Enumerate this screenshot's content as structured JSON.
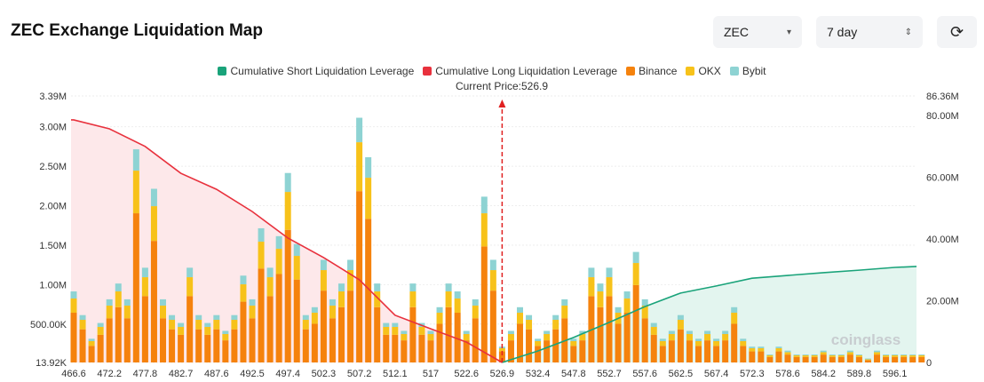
{
  "header": {
    "title": "ZEC Exchange Liquidation Map",
    "coin": "ZEC",
    "range": "7 day",
    "coin_arrow": "▾",
    "range_arrow": "⇕",
    "refresh_icon": "⟳"
  },
  "watermark": "coinglass",
  "chart_data": {
    "type": "bar",
    "title": "",
    "current_price_label": "Current Price:526.9",
    "current_price": 526.9,
    "legend": [
      {
        "name": "Cumulative Short Liquidation Leverage",
        "color": "#1aa37a"
      },
      {
        "name": "Cumulative Long Liquidation Leverage",
        "color": "#e8313d"
      },
      {
        "name": "Binance",
        "color": "#f5820d"
      },
      {
        "name": "OKX",
        "color": "#f7c21a"
      },
      {
        "name": "Bybit",
        "color": "#8ed3d3"
      }
    ],
    "x_tick_labels": [
      "466.6",
      "472.2",
      "477.8",
      "482.7",
      "487.6",
      "492.5",
      "497.4",
      "502.3",
      "507.2",
      "512.1",
      "517",
      "522.6",
      "526.9",
      "532.4",
      "547.8",
      "552.7",
      "557.6",
      "562.5",
      "567.4",
      "572.3",
      "578.6",
      "584.2",
      "589.8",
      "596.1"
    ],
    "y_left": {
      "ticks": [
        "13.92K",
        "500.00K",
        "1.00M",
        "1.50M",
        "2.00M",
        "2.50M",
        "3.00M",
        "3.39M"
      ],
      "tick_values": [
        0.01392,
        0.5,
        1.0,
        1.5,
        2.0,
        2.5,
        3.0,
        3.39
      ],
      "range": [
        0.01392,
        3.39
      ],
      "unit": "M"
    },
    "y_right": {
      "ticks": [
        "0",
        "20.00M",
        "40.00M",
        "60.00M",
        "80.00M",
        "86.36M"
      ],
      "tick_values": [
        0,
        20,
        40,
        60,
        80,
        86.36
      ],
      "range": [
        0,
        86.36
      ],
      "unit": "M"
    },
    "series": [
      {
        "name": "Binance",
        "values": [
          0.63,
          0.42,
          0.21,
          0.35,
          0.56,
          0.7,
          0.56,
          1.89,
          0.84,
          1.54,
          0.56,
          0.42,
          0.35,
          0.84,
          0.42,
          0.35,
          0.42,
          0.28,
          0.42,
          0.77,
          0.56,
          1.19,
          0.84,
          1.12,
          1.68,
          1.05,
          0.42,
          0.49,
          0.91,
          0.56,
          0.7,
          0.91,
          2.17,
          1.82,
          0.7,
          0.35,
          0.35,
          0.28,
          0.7,
          0.35,
          0.28,
          0.49,
          0.7,
          0.63,
          0.28,
          0.56,
          1.47,
          0.91,
          0.14,
          0.28,
          0.49,
          0.42,
          0.21,
          0.28,
          0.42,
          0.56,
          0.21,
          0.28,
          0.84,
          0.7,
          0.84,
          0.49,
          0.63,
          0.98,
          0.56,
          0.35,
          0.21,
          0.28,
          0.42,
          0.28,
          0.21,
          0.28,
          0.21,
          0.28,
          0.49,
          0.21,
          0.14,
          0.14,
          0.07,
          0.14,
          0.1,
          0.07,
          0.07,
          0.07,
          0.1,
          0.07,
          0.07,
          0.1,
          0.07,
          0.03,
          0.1,
          0.07,
          0.07,
          0.07,
          0.07,
          0.07
        ]
      },
      {
        "name": "OKX",
        "values": [
          0.18,
          0.12,
          0.06,
          0.1,
          0.16,
          0.2,
          0.16,
          0.54,
          0.24,
          0.44,
          0.16,
          0.12,
          0.1,
          0.24,
          0.12,
          0.1,
          0.12,
          0.08,
          0.12,
          0.22,
          0.16,
          0.34,
          0.24,
          0.32,
          0.48,
          0.3,
          0.12,
          0.14,
          0.26,
          0.16,
          0.2,
          0.26,
          0.62,
          0.52,
          0.2,
          0.1,
          0.1,
          0.08,
          0.2,
          0.1,
          0.08,
          0.14,
          0.2,
          0.18,
          0.08,
          0.16,
          0.42,
          0.26,
          0.04,
          0.08,
          0.14,
          0.12,
          0.06,
          0.08,
          0.12,
          0.16,
          0.06,
          0.08,
          0.24,
          0.2,
          0.24,
          0.14,
          0.18,
          0.28,
          0.16,
          0.1,
          0.06,
          0.08,
          0.12,
          0.08,
          0.06,
          0.08,
          0.06,
          0.08,
          0.14,
          0.06,
          0.04,
          0.04,
          0.02,
          0.04,
          0.03,
          0.02,
          0.02,
          0.02,
          0.03,
          0.02,
          0.02,
          0.03,
          0.02,
          0.01,
          0.03,
          0.02,
          0.02,
          0.02,
          0.02,
          0.02
        ]
      },
      {
        "name": "Bybit",
        "values": [
          0.09,
          0.06,
          0.03,
          0.05,
          0.08,
          0.1,
          0.08,
          0.27,
          0.12,
          0.22,
          0.08,
          0.06,
          0.05,
          0.12,
          0.06,
          0.05,
          0.06,
          0.04,
          0.06,
          0.11,
          0.08,
          0.17,
          0.12,
          0.16,
          0.24,
          0.15,
          0.06,
          0.07,
          0.13,
          0.08,
          0.1,
          0.13,
          0.31,
          0.26,
          0.1,
          0.05,
          0.05,
          0.04,
          0.1,
          0.05,
          0.04,
          0.07,
          0.1,
          0.09,
          0.04,
          0.08,
          0.21,
          0.13,
          0.02,
          0.04,
          0.07,
          0.06,
          0.03,
          0.04,
          0.06,
          0.08,
          0.03,
          0.04,
          0.12,
          0.1,
          0.12,
          0.07,
          0.09,
          0.14,
          0.08,
          0.05,
          0.03,
          0.04,
          0.06,
          0.04,
          0.03,
          0.04,
          0.03,
          0.04,
          0.07,
          0.03,
          0.02,
          0.02,
          0.01,
          0.02,
          0.02,
          0.01,
          0.01,
          0.01,
          0.02,
          0.01,
          0.01,
          0.02,
          0.01,
          0.01,
          0.02,
          0.01,
          0.01,
          0.01,
          0.01,
          0.01
        ]
      }
    ],
    "cumulative_long": {
      "name": "Cumulative Long Liquidation Leverage",
      "prices": [
        466.6,
        472.2,
        477.8,
        482.7,
        487.6,
        492.5,
        497.4,
        502.3,
        507.2,
        512.1,
        517,
        522.6,
        526.9
      ],
      "values": [
        78.6,
        75.7,
        70.0,
        61.3,
        56.1,
        48.9,
        40.3,
        34.0,
        26.8,
        15.3,
        10.9,
        6.6,
        0
      ]
    },
    "cumulative_short": {
      "name": "Cumulative Short Liquidation Leverage",
      "prices": [
        526.9,
        532.4,
        547.8,
        552.7,
        557.6,
        562.5,
        567.4,
        572.3,
        578.6,
        584.2,
        589.8,
        596.1
      ],
      "values": [
        0,
        3.7,
        8.1,
        13.0,
        18.1,
        22.5,
        24.8,
        27.3,
        28.2,
        29.1,
        29.9,
        30.8
      ]
    }
  }
}
